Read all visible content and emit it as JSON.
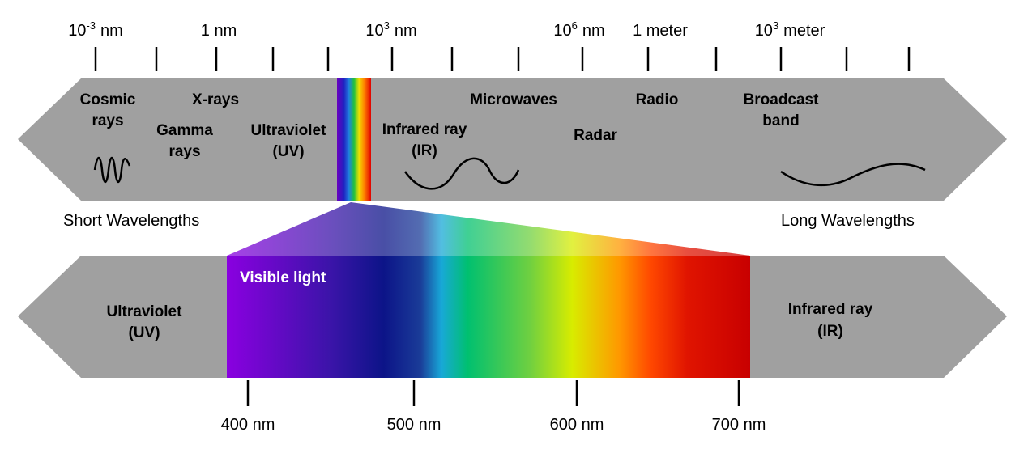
{
  "scale_labels": [
    {
      "base": "10",
      "sup": "-3",
      "unit": "nm"
    },
    {
      "text": "1 nm"
    },
    {
      "base": "10",
      "sup": "3",
      "unit": "nm"
    },
    {
      "base": "10",
      "sup": "6",
      "unit": "nm"
    },
    {
      "text": "1 meter"
    },
    {
      "base": "10",
      "sup": "3",
      "unit": "meter"
    }
  ],
  "bands": [
    {
      "lines": [
        "Cosmic",
        "rays"
      ]
    },
    {
      "lines": [
        "Gamma",
        "rays"
      ]
    },
    {
      "lines": [
        "X-rays"
      ]
    },
    {
      "lines": [
        "Ultraviolet",
        "(UV)"
      ]
    },
    {
      "lines": [
        "Infrared ray",
        "(IR)"
      ]
    },
    {
      "lines": [
        "Microwaves"
      ]
    },
    {
      "lines": [
        "Radar"
      ]
    },
    {
      "lines": [
        "Radio"
      ]
    },
    {
      "lines": [
        "Broadcast",
        "band"
      ]
    }
  ],
  "short_wavelengths": "Short Wavelengths",
  "long_wavelengths": "Long Wavelengths",
  "visible": {
    "title": "Visible light",
    "left": [
      "Ultraviolet",
      "(UV)"
    ],
    "right": [
      "Infrared ray",
      "(IR)"
    ],
    "ticks": [
      "400 nm",
      "500 nm",
      "600 nm",
      "700 nm"
    ]
  }
}
